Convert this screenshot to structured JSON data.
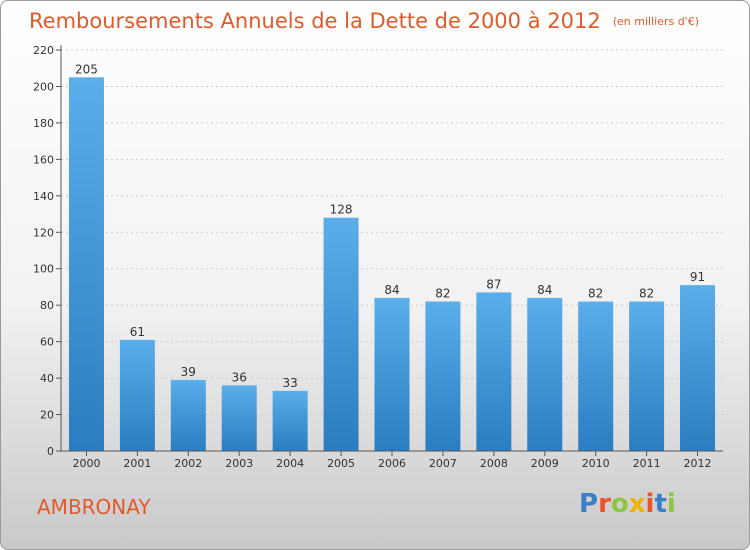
{
  "title": "Remboursements Annuels de la Dette de 2000 à 2012",
  "unit_note": "(en milliers d'€)",
  "city": "AMBRONAY",
  "logo": {
    "text": "Proxiti",
    "letter_colors": [
      "#3a7fc8",
      "#e9542a",
      "#8cc63e",
      "#f0b400",
      "#e9542a",
      "#3a7fc8",
      "#8cc63e"
    ]
  },
  "colors": {
    "bar_light": "#5aaeea",
    "bar_dark": "#2a7dc0",
    "title": "#e05a2a"
  },
  "chart_data": {
    "type": "bar",
    "categories": [
      "2000",
      "2001",
      "2002",
      "2003",
      "2004",
      "2005",
      "2006",
      "2007",
      "2008",
      "2009",
      "2010",
      "2011",
      "2012"
    ],
    "values": [
      205,
      61,
      39,
      36,
      33,
      128,
      84,
      82,
      87,
      84,
      82,
      82,
      91
    ],
    "yticks": [
      0,
      20,
      40,
      60,
      80,
      100,
      120,
      140,
      160,
      180,
      200,
      220
    ],
    "ylim": [
      0,
      220
    ],
    "grid": "horizontal dashed",
    "data_labels": true
  }
}
